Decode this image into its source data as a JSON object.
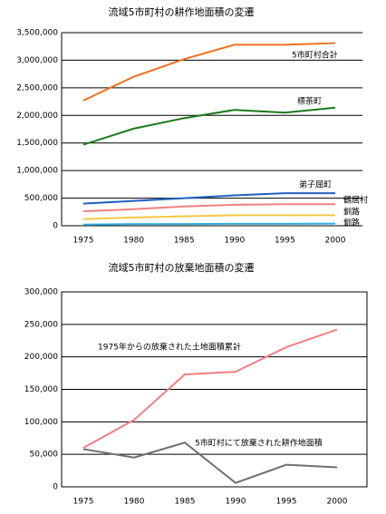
{
  "chart_data": [
    {
      "type": "line",
      "title": "流域5市町村の耕作地面積の変遷",
      "categories": [
        "1975",
        "1980",
        "1985",
        "1990",
        "1995",
        "2000"
      ],
      "ylim": [
        0,
        3500000
      ],
      "yticks": [
        {
          "value": 0,
          "label": "0"
        },
        {
          "value": 500000,
          "label": "500,000"
        },
        {
          "value": 1000000,
          "label": "1,000,000"
        },
        {
          "value": 1500000,
          "label": "1,500,000"
        },
        {
          "value": 2000000,
          "label": "2,000,000"
        },
        {
          "value": 2500000,
          "label": "2,500,000"
        },
        {
          "value": 3000000,
          "label": "3,000,000"
        },
        {
          "value": 3500000,
          "label": "3,500,000"
        }
      ],
      "grid": true,
      "border": false,
      "series": [
        {
          "name": "5市町村合計",
          "color": "#f07020",
          "values": [
            2270000,
            2700000,
            3020000,
            3280000,
            3280000,
            3310000
          ]
        },
        {
          "name": "標茶町",
          "color": "#1a7a1a",
          "values": [
            1470000,
            1760000,
            1950000,
            2100000,
            2050000,
            2140000
          ]
        },
        {
          "name": "弟子屈町",
          "color": "#2060c0",
          "values": [
            400000,
            450000,
            500000,
            550000,
            590000,
            590000
          ]
        },
        {
          "name": "鶴居村",
          "color": "#f08080",
          "values": [
            260000,
            300000,
            350000,
            380000,
            390000,
            390000
          ]
        },
        {
          "name": "釧路",
          "color": "#f5c842",
          "values": [
            120000,
            150000,
            170000,
            190000,
            190000,
            190000
          ]
        },
        {
          "name": "釧路",
          "color": "#30b0e0",
          "values": [
            20000,
            30000,
            30000,
            35000,
            35000,
            40000
          ]
        }
      ]
    },
    {
      "type": "line",
      "title": "流域5市町村の放棄地面積の変遷",
      "categories": [
        "1975",
        "1980",
        "1985",
        "1990",
        "1995",
        "2000"
      ],
      "ylim": [
        0,
        300000
      ],
      "yticks": [
        {
          "value": 0,
          "label": "0"
        },
        {
          "value": 50000,
          "label": "50,000"
        },
        {
          "value": 100000,
          "label": "100,000"
        },
        {
          "value": 150000,
          "label": "150,000"
        },
        {
          "value": 200000,
          "label": "200,000"
        },
        {
          "value": 250000,
          "label": "250,000"
        },
        {
          "value": 300000,
          "label": "300,000"
        }
      ],
      "grid": true,
      "border": true,
      "series": [
        {
          "name": "1975年からの放棄された土地面積累計",
          "color": "#f08080",
          "values": [
            60000,
            103000,
            173000,
            177000,
            215000,
            242000
          ]
        },
        {
          "name": "5市町村にて放棄された耕作地面積",
          "color": "#707070",
          "values": [
            58000,
            45000,
            68000,
            6000,
            34000,
            30000
          ]
        }
      ]
    }
  ]
}
